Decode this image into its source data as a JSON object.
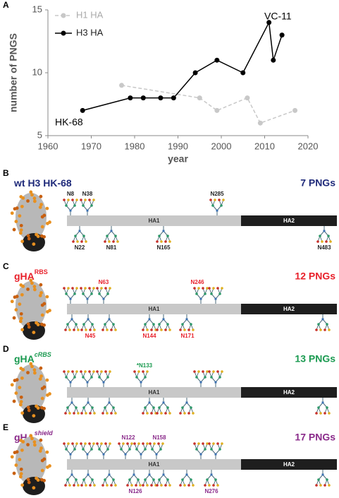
{
  "chart_data": {
    "type": "line",
    "panel": "A",
    "xlabel": "year",
    "ylabel": "number of PNGS",
    "xlim": [
      1960,
      2020
    ],
    "xticks": [
      1960,
      1970,
      1980,
      1990,
      2000,
      2010,
      2020
    ],
    "ylim": [
      5,
      15
    ],
    "yticks": [
      5,
      10,
      15
    ],
    "legend": "upper left",
    "series": [
      {
        "name": "H1 HA",
        "color": "#c8c8c8",
        "dashed": true,
        "x": [
          1977,
          1995,
          1999,
          2006,
          2009,
          2017
        ],
        "values": [
          9,
          8,
          7,
          8,
          6,
          7
        ]
      },
      {
        "name": "H3 HA",
        "color": "#000000",
        "dashed": false,
        "x": [
          1968,
          1979,
          1982,
          1986,
          1989,
          1994,
          1999,
          2005,
          2011,
          2012,
          2014
        ],
        "values": [
          7,
          8,
          8,
          8,
          8,
          10,
          11,
          10,
          14,
          11,
          13
        ]
      }
    ],
    "annotations": [
      "HK-68",
      "VC-11"
    ]
  },
  "panels": [
    {
      "letter": "B",
      "title": "wt H3 HK-68",
      "color": "#1f2a7a",
      "count": "7 PNGs",
      "segments": [
        "HA1",
        "HA2"
      ],
      "sites": [
        "N8",
        "N38",
        "N285",
        "N22",
        "N81",
        "N165",
        "N483"
      ]
    },
    {
      "letter": "C",
      "title": "gHA",
      "superscript": "RBS",
      "color": "#e8202a",
      "count": "12 PNGs",
      "segments": [
        "HA1",
        "HA2"
      ],
      "sites": [
        "N63",
        "N246",
        "N45",
        "N144",
        "N171"
      ]
    },
    {
      "letter": "D",
      "title": "gHA",
      "superscript": "cRBS",
      "color": "#1a9a50",
      "count": "13 PNGs",
      "segments": [
        "HA1",
        "HA2"
      ],
      "sites": [
        "*N133"
      ]
    },
    {
      "letter": "E",
      "title": "gHA",
      "superscript": "shield",
      "color": "#8a2a8a",
      "count": "17 PNGs",
      "segments": [
        "HA1",
        "HA2"
      ],
      "sites": [
        "N122",
        "N158",
        "N126",
        "N276"
      ]
    }
  ]
}
